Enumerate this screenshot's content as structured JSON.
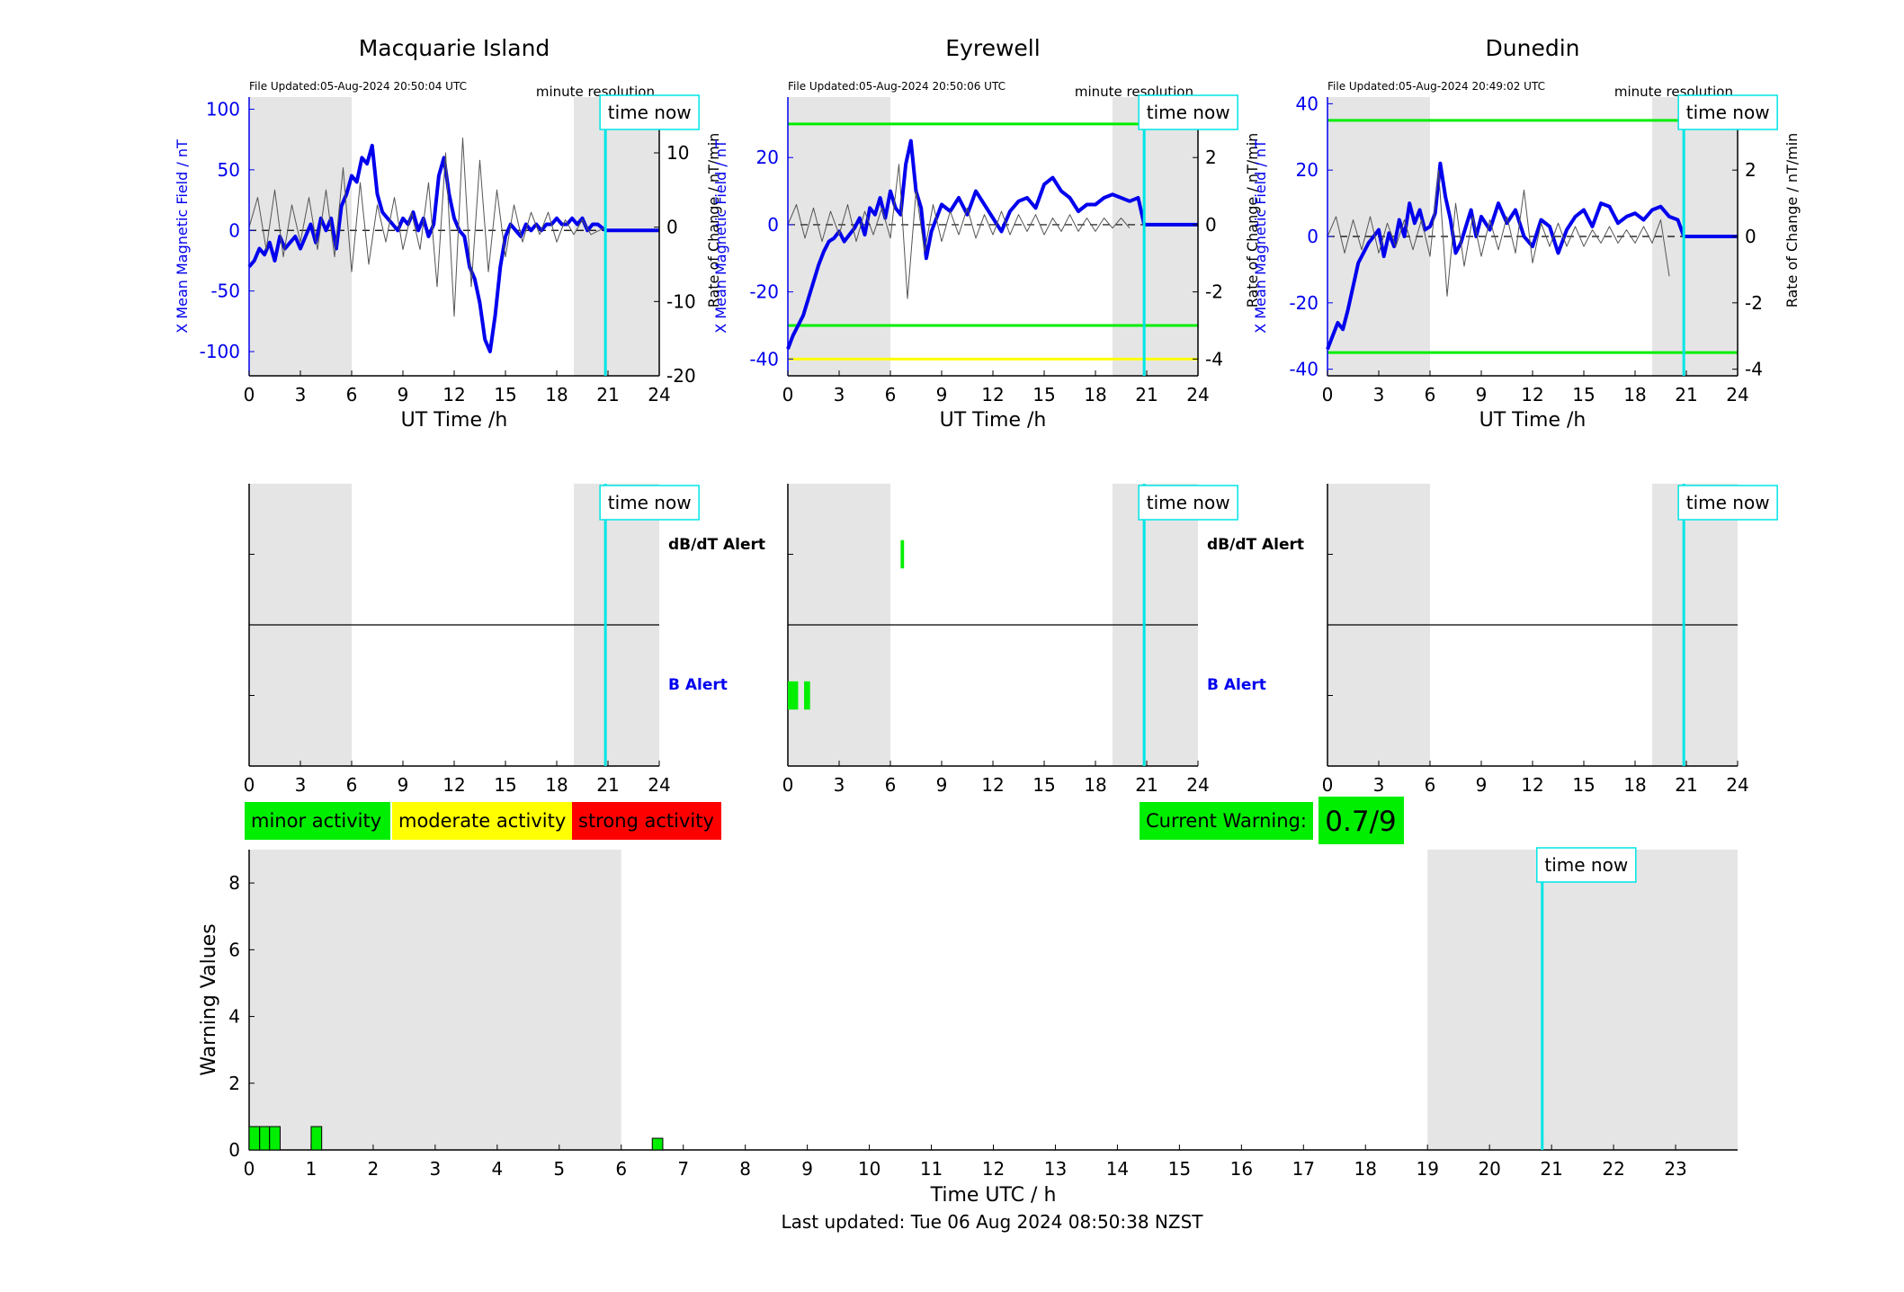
{
  "colors": {
    "background": "#ffffff",
    "night_shade": "#e5e5e5",
    "field_line": "#0000ee",
    "rate_line": "#555555",
    "time_now": "#00e5e5",
    "threshold_minor": "#00ee00",
    "threshold_moderate": "#ffff00",
    "threshold_strong": "#ff0000"
  },
  "legend": {
    "minor": "minor activity",
    "moderate": "moderate activity",
    "strong": "strong activity"
  },
  "current_warning": {
    "label": "Current Warning:",
    "value": "0.7/9"
  },
  "last_updated": "Last updated: Tue 06 Aug 2024 08:50:38 NZST",
  "time_now_label": "time now",
  "minute_resolution_label": "minute resolution",
  "alert_labels": {
    "dbdt": "dB/dT Alert",
    "b": "B Alert"
  },
  "chart_data": [
    {
      "type": "line",
      "station": "Macquarie Island",
      "title": "Macquarie Island",
      "file_updated": "File Updated:05-Aug-2024 20:50:04 UTC",
      "xlabel": "UT Time /h",
      "ylabel": "X Mean Magnetic Field / nT",
      "y2label": "Rate of Change / nT/min",
      "xlim": [
        0,
        24
      ],
      "xticks": [
        0,
        3,
        6,
        9,
        12,
        15,
        18,
        21,
        24
      ],
      "ylim": [
        -120,
        110
      ],
      "yticks": [
        -100,
        -50,
        0,
        50,
        100
      ],
      "y2lim": [
        -20,
        17.5
      ],
      "y2ticks": [
        -20,
        -10,
        0,
        10
      ],
      "night_shading": [
        [
          0,
          6
        ],
        [
          19,
          24
        ]
      ],
      "time_now": 20.85,
      "thresholds": [],
      "series": [
        {
          "axis": "left",
          "color": "blue",
          "x": [
            0,
            0.3,
            0.6,
            0.9,
            1.2,
            1.5,
            1.8,
            2.1,
            2.4,
            2.7,
            3.0,
            3.3,
            3.6,
            3.9,
            4.2,
            4.5,
            4.8,
            5.1,
            5.4,
            5.7,
            6.0,
            6.3,
            6.6,
            6.9,
            7.2,
            7.5,
            7.8,
            8.1,
            8.4,
            8.7,
            9.0,
            9.3,
            9.6,
            9.9,
            10.2,
            10.5,
            10.8,
            11.1,
            11.4,
            11.7,
            12.0,
            12.3,
            12.6,
            12.9,
            13.2,
            13.5,
            13.8,
            14.1,
            14.4,
            14.7,
            15.0,
            15.3,
            15.6,
            15.9,
            16.2,
            16.5,
            16.8,
            17.1,
            17.4,
            17.7,
            18.0,
            18.3,
            18.6,
            18.9,
            19.2,
            19.5,
            19.8,
            20.1,
            20.4,
            20.85,
            21.5,
            24
          ],
          "values": [
            -30,
            -25,
            -15,
            -20,
            -10,
            -25,
            -5,
            -15,
            -10,
            -5,
            -15,
            -5,
            5,
            -10,
            10,
            0,
            10,
            -15,
            20,
            30,
            45,
            40,
            60,
            55,
            70,
            30,
            15,
            10,
            5,
            0,
            10,
            5,
            15,
            0,
            10,
            -5,
            5,
            45,
            60,
            30,
            10,
            0,
            -5,
            -30,
            -40,
            -60,
            -90,
            -100,
            -70,
            -30,
            -5,
            5,
            0,
            -5,
            5,
            0,
            5,
            0,
            5,
            5,
            10,
            5,
            5,
            10,
            5,
            10,
            0,
            5,
            5,
            0,
            0,
            0
          ]
        },
        {
          "axis": "right",
          "color": "gray",
          "x": [
            0,
            0.5,
            1,
            1.5,
            2,
            2.5,
            3,
            3.5,
            4,
            4.5,
            5,
            5.5,
            6,
            6.5,
            7,
            7.5,
            8,
            8.5,
            9,
            9.5,
            10,
            10.5,
            11,
            11.5,
            12,
            12.5,
            13,
            13.5,
            14,
            14.5,
            15,
            15.5,
            16,
            16.5,
            17,
            17.5,
            18,
            18.5,
            19,
            19.5,
            20,
            20.85
          ],
          "values": [
            0,
            4,
            -3,
            5,
            -4,
            3,
            -2,
            4,
            -3,
            5,
            -4,
            8,
            -6,
            6,
            -5,
            3,
            -2,
            4,
            -3,
            2,
            -3,
            6,
            -8,
            10,
            -12,
            12,
            -8,
            9,
            -6,
            5,
            -4,
            3,
            -2,
            2,
            -1,
            2,
            -2,
            1,
            -1,
            1,
            -1,
            0
          ]
        }
      ],
      "alerts": {
        "dbdt": [],
        "b": []
      }
    },
    {
      "type": "line",
      "station": "Eyrewell",
      "title": "Eyrewell",
      "file_updated": "File Updated:05-Aug-2024 20:50:06 UTC",
      "xlabel": "UT Time /h",
      "ylabel": "X Mean Magnetic Field / nT",
      "y2label": "Rate of Change / nT/min",
      "xlim": [
        0,
        24
      ],
      "xticks": [
        0,
        3,
        6,
        9,
        12,
        15,
        18,
        21,
        24
      ],
      "ylim": [
        -45,
        38
      ],
      "yticks": [
        -40,
        -20,
        0,
        20
      ],
      "y2lim": [
        -4.5,
        3.8
      ],
      "y2ticks": [
        -4,
        -2,
        0,
        2
      ],
      "night_shading": [
        [
          0,
          6
        ],
        [
          19,
          24
        ]
      ],
      "time_now": 20.85,
      "thresholds": [
        {
          "axis": "left",
          "value": 30,
          "color": "green"
        },
        {
          "axis": "left",
          "value": -30,
          "color": "green"
        },
        {
          "axis": "left",
          "value": -40,
          "color": "yellow"
        }
      ],
      "series": [
        {
          "axis": "left",
          "color": "blue",
          "x": [
            0,
            0.3,
            0.6,
            0.9,
            1.2,
            1.5,
            1.8,
            2.1,
            2.4,
            2.7,
            3.0,
            3.3,
            3.6,
            3.9,
            4.2,
            4.5,
            4.8,
            5.1,
            5.4,
            5.7,
            6.0,
            6.3,
            6.6,
            6.9,
            7.2,
            7.5,
            7.8,
            8.1,
            8.4,
            8.7,
            9.0,
            9.5,
            10.0,
            10.5,
            11.0,
            11.5,
            12.0,
            12.5,
            13.0,
            13.5,
            14.0,
            14.5,
            15.0,
            15.5,
            16.0,
            16.5,
            17.0,
            17.5,
            18.0,
            18.5,
            19.0,
            19.5,
            20.0,
            20.5,
            20.85,
            22,
            24
          ],
          "values": [
            -37,
            -33,
            -30,
            -27,
            -22,
            -17,
            -12,
            -8,
            -5,
            -4,
            -2,
            -5,
            -3,
            -1,
            2,
            -3,
            5,
            3,
            8,
            2,
            10,
            5,
            3,
            18,
            25,
            10,
            5,
            -10,
            -2,
            2,
            6,
            4,
            8,
            3,
            10,
            6,
            2,
            -2,
            4,
            7,
            8,
            5,
            12,
            14,
            10,
            8,
            4,
            6,
            6,
            8,
            9,
            8,
            7,
            8,
            0,
            0,
            0
          ]
        },
        {
          "axis": "right",
          "color": "gray",
          "x": [
            0,
            0.5,
            1,
            1.5,
            2,
            2.5,
            3,
            3.5,
            4,
            4.5,
            5,
            5.5,
            6,
            6.5,
            7,
            7.5,
            8,
            8.5,
            9,
            9.5,
            10,
            10.5,
            11,
            11.5,
            12,
            12.5,
            13,
            13.5,
            14,
            14.5,
            15,
            15.5,
            16,
            16.5,
            17,
            17.5,
            18,
            18.5,
            19,
            19.5,
            20
          ],
          "values": [
            0,
            0.6,
            -0.4,
            0.5,
            -0.5,
            0.4,
            -0.3,
            0.6,
            -0.5,
            0.4,
            -0.3,
            0.5,
            -0.4,
            1.8,
            -2.2,
            1.0,
            -0.8,
            0.6,
            -0.5,
            0.4,
            -0.3,
            0.5,
            -0.4,
            0.3,
            -0.3,
            0.4,
            -0.3,
            0.3,
            -0.2,
            0.3,
            -0.3,
            0.2,
            -0.2,
            0.3,
            -0.2,
            0.2,
            -0.2,
            0.2,
            -0.1,
            0.2,
            -0.1
          ]
        }
      ],
      "alerts": {
        "dbdt": [
          [
            6.6,
            6.8
          ]
        ],
        "b": [
          [
            0,
            0.6
          ],
          [
            0.95,
            1.3
          ]
        ]
      }
    },
    {
      "type": "line",
      "station": "Dunedin",
      "title": "Dunedin",
      "file_updated": "File Updated:05-Aug-2024 20:49:02 UTC",
      "xlabel": "UT Time /h",
      "ylabel": "X Mean Magnetic Field / nT",
      "y2label": "Rate of Change / nT/min",
      "xlim": [
        0,
        24
      ],
      "xticks": [
        0,
        3,
        6,
        9,
        12,
        15,
        18,
        21,
        24
      ],
      "ylim": [
        -42,
        42
      ],
      "yticks": [
        -40,
        -20,
        0,
        20,
        40
      ],
      "y2lim": [
        -4.2,
        4.2
      ],
      "y2ticks": [
        -4,
        -2,
        0,
        2,
        4
      ],
      "night_shading": [
        [
          0,
          6
        ],
        [
          19,
          24
        ]
      ],
      "time_now": 20.85,
      "thresholds": [
        {
          "axis": "left",
          "value": 35,
          "color": "green"
        },
        {
          "axis": "left",
          "value": -35,
          "color": "green"
        }
      ],
      "series": [
        {
          "axis": "left",
          "color": "blue",
          "x": [
            0,
            0.3,
            0.6,
            0.9,
            1.2,
            1.5,
            1.8,
            2.1,
            2.4,
            2.7,
            3.0,
            3.3,
            3.6,
            3.9,
            4.2,
            4.5,
            4.8,
            5.1,
            5.4,
            5.7,
            6.0,
            6.3,
            6.6,
            6.9,
            7.2,
            7.5,
            7.8,
            8.1,
            8.4,
            8.7,
            9.0,
            9.5,
            10.0,
            10.5,
            11.0,
            11.5,
            12.0,
            12.5,
            13.0,
            13.5,
            14.0,
            14.5,
            15.0,
            15.5,
            16.0,
            16.5,
            17.0,
            17.5,
            18.0,
            18.5,
            19.0,
            19.5,
            20.0,
            20.5,
            20.85,
            22,
            24
          ],
          "values": [
            -34,
            -30,
            -26,
            -28,
            -22,
            -15,
            -8,
            -5,
            -2,
            0,
            2,
            -6,
            1,
            -3,
            5,
            0,
            10,
            4,
            8,
            2,
            3,
            7,
            22,
            12,
            5,
            -5,
            -2,
            3,
            8,
            0,
            6,
            2,
            10,
            4,
            8,
            0,
            -3,
            5,
            3,
            -5,
            2,
            6,
            8,
            3,
            10,
            9,
            4,
            6,
            7,
            5,
            8,
            9,
            6,
            5,
            0,
            0,
            0
          ]
        },
        {
          "axis": "right",
          "color": "gray",
          "x": [
            0,
            0.5,
            1,
            1.5,
            2,
            2.5,
            3,
            3.5,
            4,
            4.5,
            5,
            5.5,
            6,
            6.5,
            7,
            7.5,
            8,
            8.5,
            9,
            9.5,
            10,
            10.5,
            11,
            11.5,
            12,
            12.5,
            13,
            13.5,
            14,
            14.5,
            15,
            15.5,
            16,
            16.5,
            17,
            17.5,
            18,
            18.5,
            19,
            19.5,
            20
          ],
          "values": [
            0,
            0.6,
            -0.5,
            0.5,
            -0.4,
            0.6,
            -0.5,
            0.4,
            -0.3,
            0.5,
            -0.4,
            0.5,
            -0.6,
            2.0,
            -1.8,
            1.0,
            -0.9,
            0.6,
            -0.6,
            0.5,
            -0.4,
            0.6,
            -0.5,
            1.4,
            -0.8,
            0.4,
            -0.3,
            0.4,
            -0.3,
            0.3,
            -0.3,
            0.2,
            -0.2,
            0.3,
            -0.2,
            0.2,
            -0.2,
            0.3,
            -0.2,
            0.5,
            -1.2
          ]
        }
      ],
      "alerts": {
        "dbdt": [],
        "b": []
      }
    },
    {
      "type": "bar",
      "title": "",
      "xlabel": "Time UTC / h",
      "ylabel": "Warning Values",
      "xlim": [
        0,
        24
      ],
      "xticks": [
        0,
        1,
        2,
        3,
        4,
        5,
        6,
        7,
        8,
        9,
        10,
        11,
        12,
        13,
        14,
        15,
        16,
        17,
        18,
        19,
        20,
        21,
        22,
        23
      ],
      "ylim": [
        0,
        9
      ],
      "yticks": [
        0,
        2,
        4,
        6,
        8
      ],
      "night_shading": [
        [
          0,
          6
        ],
        [
          19,
          24
        ]
      ],
      "time_now": 20.85,
      "bars": [
        {
          "x0": 0.0,
          "x1": 0.17,
          "value": 0.7
        },
        {
          "x0": 0.17,
          "x1": 0.33,
          "value": 0.7
        },
        {
          "x0": 0.33,
          "x1": 0.5,
          "value": 0.7
        },
        {
          "x0": 1.0,
          "x1": 1.17,
          "value": 0.7
        },
        {
          "x0": 6.5,
          "x1": 6.67,
          "value": 0.35
        }
      ]
    }
  ]
}
